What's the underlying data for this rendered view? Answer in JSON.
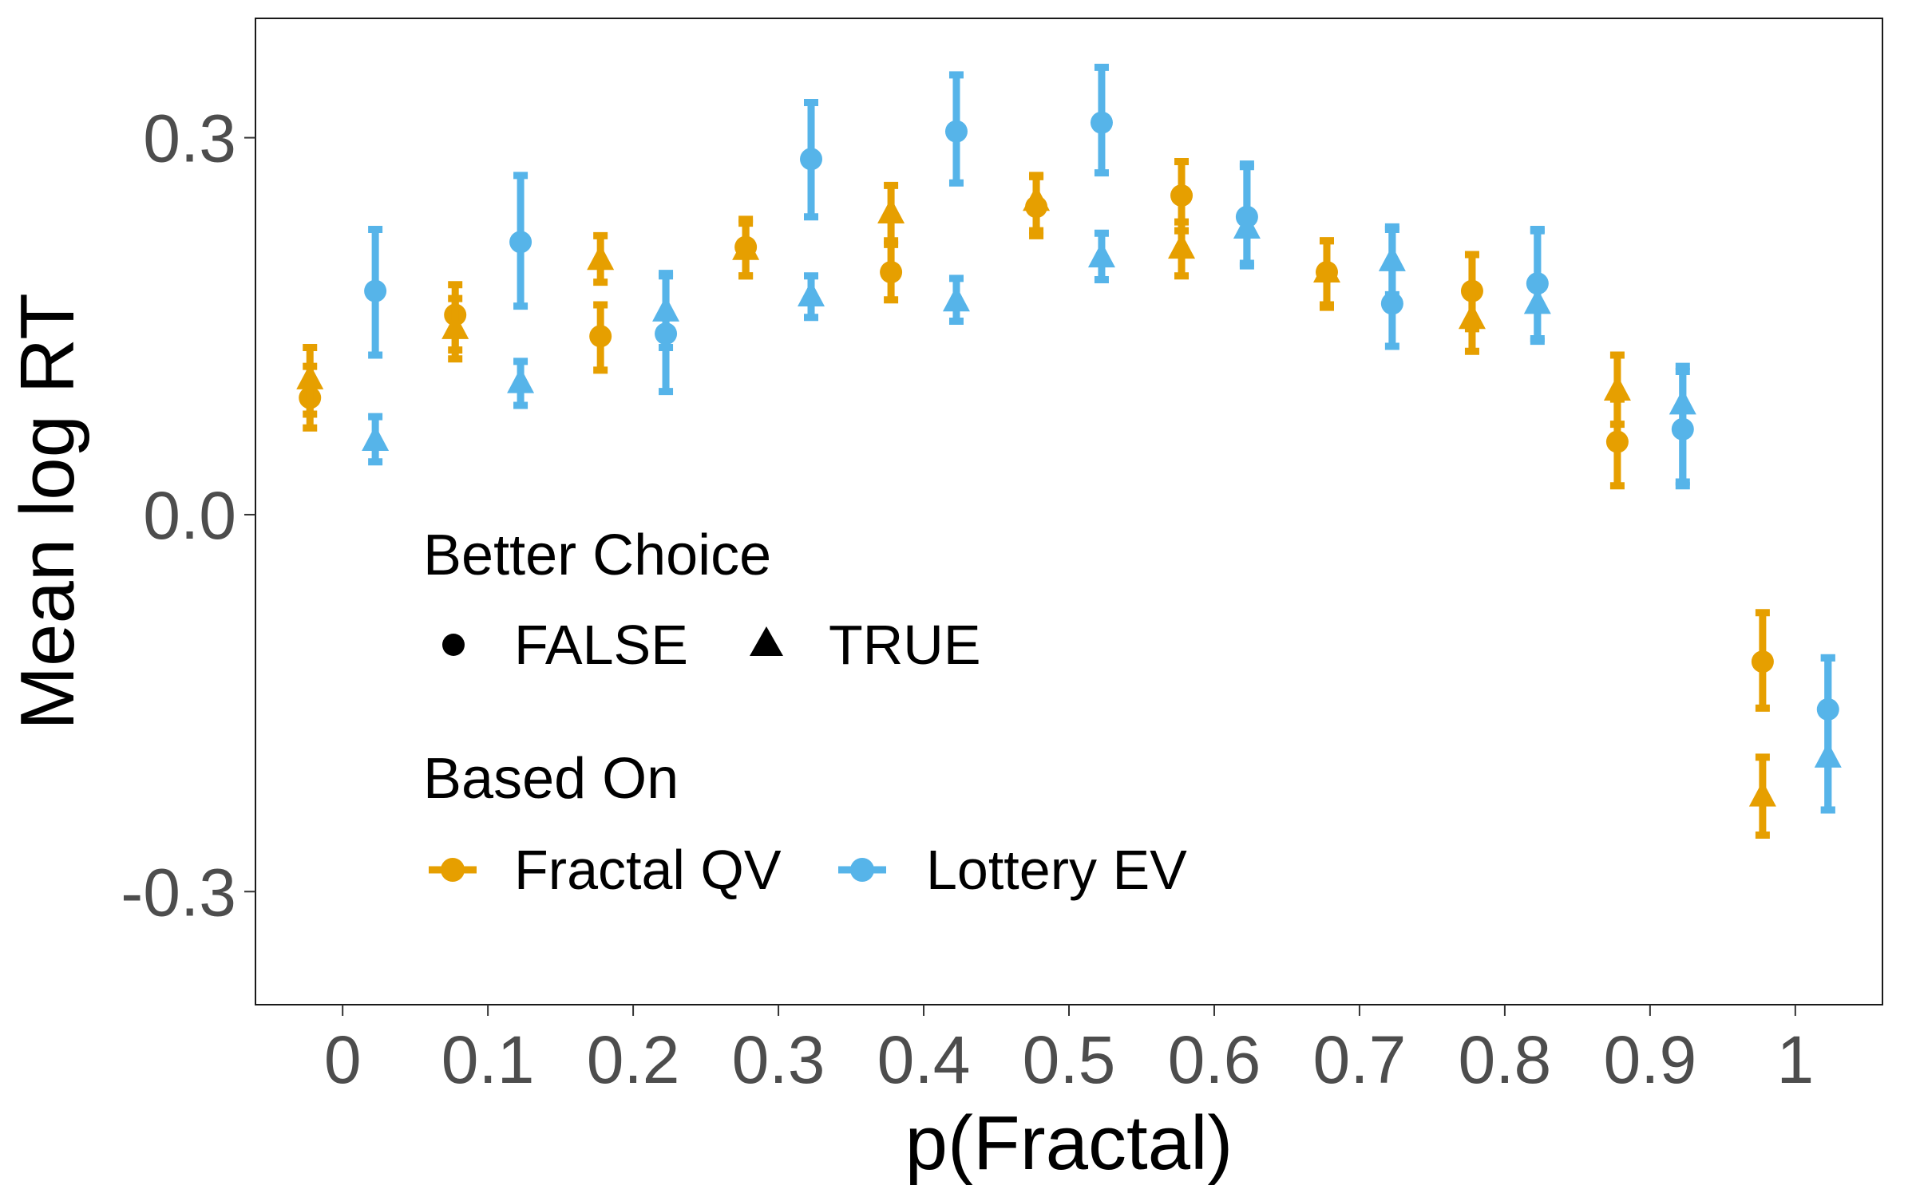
{
  "chart_data": {
    "type": "scatter",
    "xlabel": "p(Fractal)",
    "ylabel": "Mean log RT",
    "x_ticks": [
      "0",
      "0.1",
      "0.2",
      "0.3",
      "0.4",
      "0.5",
      "0.6",
      "0.7",
      "0.8",
      "0.9",
      "1"
    ],
    "y_ticks": [
      "0.3",
      "0.0",
      "-0.3"
    ],
    "xlim": [
      -0.06,
      1.06
    ],
    "ylim": [
      -0.39,
      0.395
    ],
    "grid": false,
    "legend": {
      "placement": "inside-lower-left",
      "shape_title": "Better Choice",
      "shape_entries": [
        {
          "label": "FALSE",
          "shape": "circle"
        },
        {
          "label": "TRUE",
          "shape": "triangle"
        }
      ],
      "color_title": "Based On",
      "color_entries": [
        {
          "label": "Fractal QV",
          "color": "#E69F00"
        },
        {
          "label": "Lottery EV",
          "color": "#56B4E9"
        }
      ]
    },
    "series": [
      {
        "name": "Fractal QV",
        "better_choice": "FALSE",
        "color": "#E69F00",
        "shape": "circle",
        "x": [
          0,
          0.1,
          0.2,
          0.3,
          0.4,
          0.5,
          0.6,
          0.7,
          0.8,
          0.9,
          1.0
        ],
        "y": [
          0.093,
          0.159,
          0.142,
          0.213,
          0.193,
          0.245,
          0.254,
          0.193,
          0.178,
          0.058,
          -0.117
        ],
        "lower": [
          0.069,
          0.131,
          0.115,
          0.19,
          0.171,
          0.222,
          0.226,
          0.167,
          0.148,
          0.023,
          -0.154
        ],
        "upper": [
          0.118,
          0.183,
          0.167,
          0.235,
          0.215,
          0.269,
          0.281,
          0.218,
          0.207,
          0.092,
          -0.078
        ]
      },
      {
        "name": "Fractal QV",
        "better_choice": "TRUE",
        "color": "#E69F00",
        "shape": "triangle",
        "x": [
          0,
          0.1,
          0.2,
          0.3,
          0.4,
          0.5,
          0.6,
          0.7,
          0.8,
          0.9,
          1.0
        ],
        "y": [
          0.108,
          0.148,
          0.203,
          0.211,
          0.24,
          0.25,
          0.212,
          0.193,
          0.156,
          0.099,
          -0.224
        ],
        "lower": [
          0.08,
          0.124,
          0.185,
          0.19,
          0.218,
          0.226,
          0.19,
          0.165,
          0.13,
          0.072,
          -0.255
        ],
        "upper": [
          0.133,
          0.172,
          0.222,
          0.232,
          0.262,
          0.27,
          0.233,
          0.218,
          0.178,
          0.127,
          -0.193
        ]
      },
      {
        "name": "Lottery EV",
        "better_choice": "FALSE",
        "color": "#56B4E9",
        "shape": "circle",
        "x": [
          0,
          0.1,
          0.2,
          0.3,
          0.4,
          0.5,
          0.6,
          0.7,
          0.8,
          0.9,
          1.0
        ],
        "y": [
          0.178,
          0.217,
          0.144,
          0.283,
          0.305,
          0.312,
          0.237,
          0.168,
          0.184,
          0.068,
          -0.155
        ],
        "lower": [
          0.127,
          0.166,
          0.098,
          0.237,
          0.264,
          0.272,
          0.2,
          0.134,
          0.14,
          0.023,
          -0.235
        ],
        "upper": [
          0.227,
          0.27,
          0.192,
          0.328,
          0.35,
          0.356,
          0.277,
          0.227,
          0.226,
          0.114,
          -0.114
        ]
      },
      {
        "name": "Lottery EV",
        "better_choice": "TRUE",
        "color": "#56B4E9",
        "shape": "triangle",
        "x": [
          0,
          0.1,
          0.2,
          0.3,
          0.4,
          0.5,
          0.6,
          0.7,
          0.8,
          0.9,
          1.0
        ],
        "y": [
          0.059,
          0.105,
          0.162,
          0.174,
          0.17,
          0.205,
          0.228,
          0.202,
          0.168,
          0.088,
          -0.193
        ],
        "lower": [
          0.042,
          0.087,
          0.133,
          0.157,
          0.154,
          0.187,
          0.198,
          0.175,
          0.138,
          0.026,
          -0.235
        ],
        "upper": [
          0.078,
          0.122,
          0.19,
          0.19,
          0.188,
          0.224,
          0.279,
          0.229,
          0.227,
          0.118,
          -0.114
        ]
      }
    ]
  }
}
